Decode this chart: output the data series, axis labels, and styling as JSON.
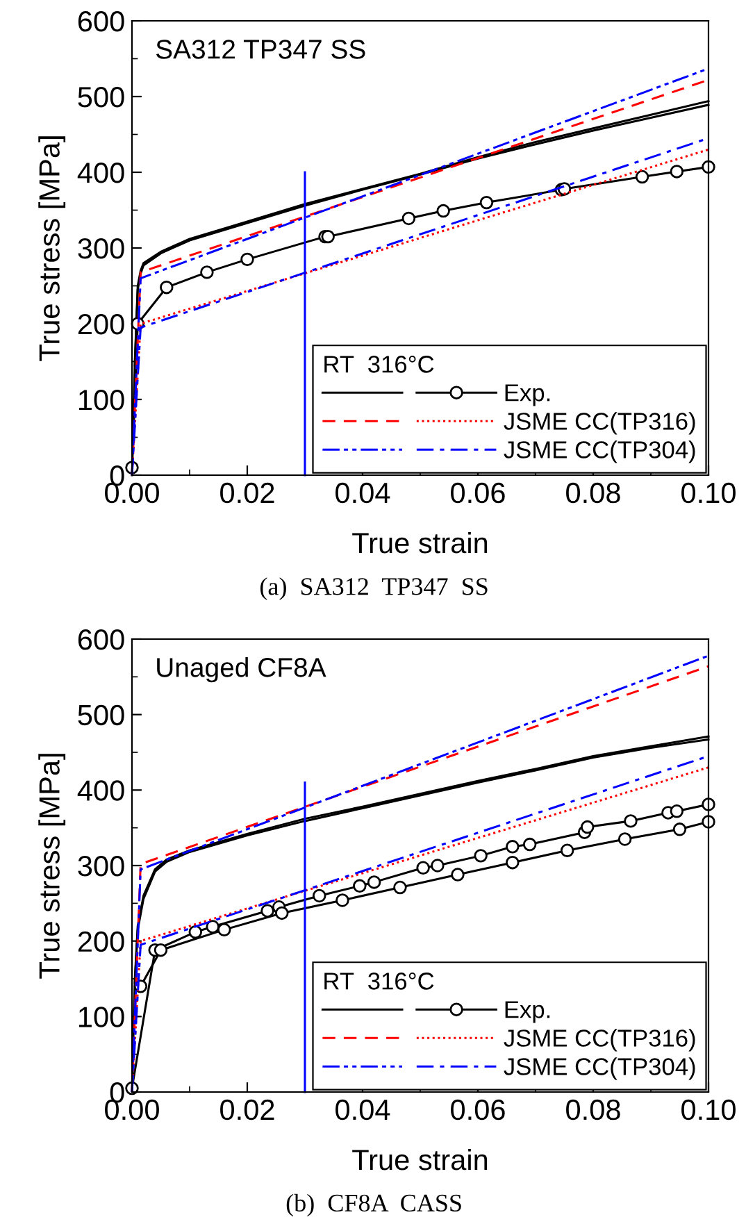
{
  "chart_data": [
    {
      "type": "line",
      "title": "(a)  SA312  TP347  SS",
      "annotations": [
        "SA312 TP347 SS"
      ],
      "xlabel": "True strain",
      "ylabel": "True stress [MPa]",
      "legend_title": "RT  316°C",
      "legend": "bottom right",
      "xlim": [
        0,
        0.1
      ],
      "ylim": [
        0,
        600
      ],
      "xticks": [
        {
          "value": 0,
          "label": "0.00"
        },
        {
          "value": 0.02,
          "label": "0.02"
        },
        {
          "value": 0.04,
          "label": "0.04"
        },
        {
          "value": 0.06,
          "label": "0.06"
        },
        {
          "value": 0.08,
          "label": "0.08"
        },
        {
          "value": 0.1,
          "label": "0.10"
        }
      ],
      "yticks": [
        0,
        100,
        200,
        300,
        400,
        500,
        600
      ],
      "series": [
        {
          "color": "#000000",
          "line_style": "solid",
          "marker": "none",
          "x": [
            0,
            0.0005,
            0.001,
            0.0015,
            0.002,
            0.005,
            0.01,
            0.02,
            0.03,
            0.04,
            0.05,
            0.06,
            0.07,
            0.08,
            0.09,
            0.1
          ],
          "values": [
            0,
            150,
            250,
            270,
            280,
            295,
            312,
            335,
            358,
            378,
            398,
            420,
            440,
            458,
            476,
            494
          ]
        },
        {
          "color": "#000000",
          "line_style": "solid",
          "marker": "none",
          "x": [
            0.0005,
            0.001,
            0.0015,
            0.002,
            0.005,
            0.01,
            0.02,
            0.03,
            0.04,
            0.05,
            0.06,
            0.07,
            0.08,
            0.09,
            0.1
          ],
          "values": [
            145,
            245,
            266,
            277,
            293,
            310,
            333,
            356,
            377,
            397,
            418,
            437,
            455,
            472,
            489
          ]
        },
        {
          "name": "Exp.",
          "color": "#000000",
          "line_style": "solid",
          "marker": "circle",
          "x": [
            0,
            0.001,
            0.006,
            0.013,
            0.02,
            0.0335,
            0.034,
            0.048,
            0.054,
            0.0615,
            0.0745,
            0.075,
            0.0885,
            0.0945,
            0.1
          ],
          "values": [
            10,
            200,
            248,
            268,
            285,
            315,
            315,
            339,
            349,
            360,
            377,
            378,
            394,
            401,
            407
          ]
        },
        {
          "color": "#ff0000",
          "line_style": "dashed",
          "marker": "none",
          "x": [
            0,
            0.0015,
            0.1
          ],
          "values": [
            0,
            268,
            522
          ]
        },
        {
          "name": "JSME CC(TP316)",
          "color": "#ff0000",
          "line_style": "dotted",
          "marker": "none",
          "x": [
            0,
            0.0015,
            0.1
          ],
          "values": [
            0,
            200,
            430
          ]
        },
        {
          "color": "#0000ff",
          "line_style": "dashdotdot",
          "marker": "none",
          "x": [
            0,
            0.0015,
            0.1
          ],
          "values": [
            0,
            260,
            537
          ]
        },
        {
          "name": "JSME CC(TP304)",
          "color": "#0000ff",
          "line_style": "dashdot",
          "marker": "none",
          "x": [
            0,
            0.0015,
            0.1
          ],
          "values": [
            0,
            195,
            445
          ]
        },
        {
          "type": "line",
          "color": "#0000ff",
          "line_style": "solid",
          "marker": "none",
          "x": [
            0.03,
            0.03
          ],
          "values": [
            0,
            400
          ]
        }
      ]
    },
    {
      "type": "line",
      "title": "(b)  CF8A  CASS",
      "annotations": [
        "Unaged CF8A"
      ],
      "xlabel": "True strain",
      "ylabel": "True stress [MPa]",
      "legend_title": "RT  316°C",
      "legend": "bottom right",
      "xlim": [
        0,
        0.1
      ],
      "ylim": [
        0,
        600
      ],
      "xticks": [
        {
          "value": 0,
          "label": "0.00"
        },
        {
          "value": 0.02,
          "label": "0.02"
        },
        {
          "value": 0.04,
          "label": "0.04"
        },
        {
          "value": 0.06,
          "label": "0.06"
        },
        {
          "value": 0.08,
          "label": "0.08"
        },
        {
          "value": 0.1,
          "label": "0.10"
        }
      ],
      "yticks": [
        0,
        100,
        200,
        300,
        400,
        500,
        600
      ],
      "series": [
        {
          "color": "#000000",
          "line_style": "solid",
          "marker": "none",
          "x": [
            0,
            0.0005,
            0.001,
            0.002,
            0.004,
            0.006,
            0.01,
            0.02,
            0.03,
            0.04,
            0.05,
            0.06,
            0.07,
            0.08,
            0.09,
            0.1
          ],
          "values": [
            0,
            150,
            220,
            260,
            295,
            308,
            320,
            342,
            362,
            378,
            395,
            412,
            428,
            445,
            458,
            471
          ]
        },
        {
          "color": "#000000",
          "line_style": "solid",
          "marker": "none",
          "x": [
            0.0005,
            0.001,
            0.002,
            0.004,
            0.006,
            0.01,
            0.02,
            0.03,
            0.04,
            0.05,
            0.06,
            0.07,
            0.08,
            0.09,
            0.1
          ],
          "values": [
            145,
            215,
            256,
            292,
            305,
            318,
            340,
            359,
            376,
            393,
            410,
            426,
            443,
            456,
            467
          ]
        },
        {
          "name": "Exp.",
          "color": "#000000",
          "line_style": "solid",
          "marker": "circle",
          "x": [
            0,
            0.004,
            0.011,
            0.014,
            0.0235,
            0.0255,
            0.0325,
            0.0395,
            0.042,
            0.0505,
            0.053,
            0.0605,
            0.066,
            0.069,
            0.0785,
            0.079,
            0.0865,
            0.093,
            0.0945,
            0.1
          ],
          "values": [
            5,
            188,
            212,
            219,
            240,
            245,
            260,
            273,
            278,
            297,
            300,
            313,
            325,
            328,
            344,
            351,
            359,
            370,
            372,
            381
          ]
        },
        {
          "name": "Exp.",
          "color": "#000000",
          "line_style": "solid",
          "marker": "circle",
          "x": [
            0.0015,
            0.005,
            0.016,
            0.026,
            0.0365,
            0.0465,
            0.0565,
            0.066,
            0.0755,
            0.0855,
            0.095,
            0.1
          ],
          "values": [
            140,
            188,
            215,
            237,
            254,
            271,
            288,
            304,
            320,
            335,
            348,
            358
          ]
        },
        {
          "color": "#ff0000",
          "line_style": "dashed",
          "marker": "none",
          "x": [
            0,
            0.0015,
            0.1
          ],
          "values": [
            0,
            302,
            564
          ]
        },
        {
          "name": "JSME CC(TP316)",
          "color": "#ff0000",
          "line_style": "dotted",
          "marker": "none",
          "x": [
            0,
            0.0015,
            0.1
          ],
          "values": [
            0,
            200,
            430
          ]
        },
        {
          "color": "#0000ff",
          "line_style": "dashdotdot",
          "marker": "none",
          "x": [
            0,
            0.0015,
            0.1
          ],
          "values": [
            0,
            295,
            578
          ]
        },
        {
          "name": "JSME CC(TP304)",
          "color": "#0000ff",
          "line_style": "dashdot",
          "marker": "none",
          "x": [
            0,
            0.0015,
            0.1
          ],
          "values": [
            0,
            195,
            445
          ]
        },
        {
          "type": "line",
          "color": "#0000ff",
          "line_style": "solid",
          "marker": "none",
          "x": [
            0.03,
            0.03
          ],
          "values": [
            0,
            410
          ]
        }
      ]
    }
  ]
}
